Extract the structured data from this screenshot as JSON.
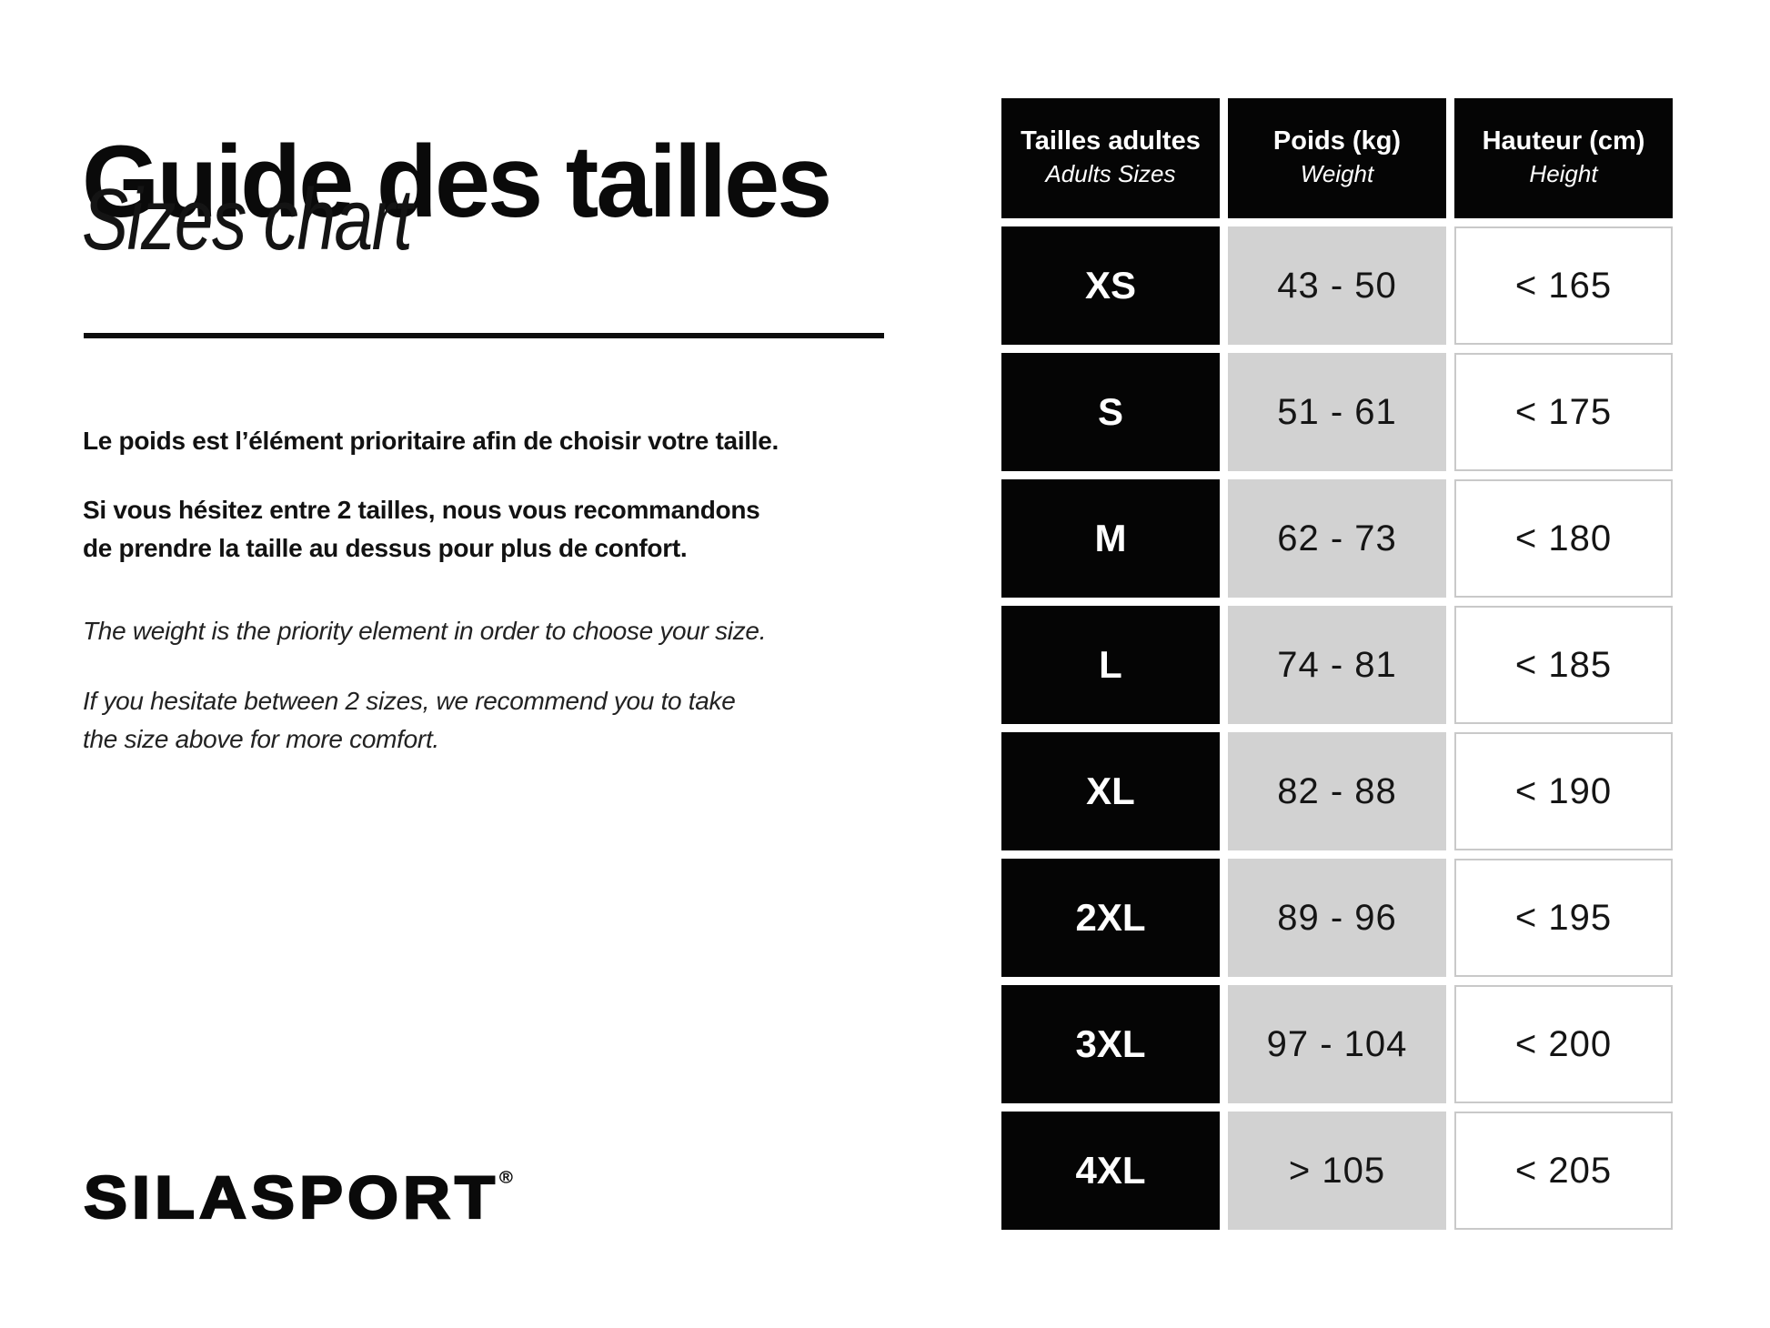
{
  "header": {
    "title_fr": "Guide des tailles",
    "title_en": "Sizes chart"
  },
  "intro": {
    "fr_priority": "Le poids est l’élément prioritaire afin de choisir votre taille.",
    "fr_hesitate_lines": [
      "Si vous hésitez entre 2 tailles, nous vous recommandons",
      "de prendre la taille au dessus pour plus de confort."
    ],
    "en_priority": "The weight is the priority element in order to choose your size.",
    "en_hesitate_lines": [
      "If you hesitate between 2 sizes, we recommend you to take",
      "the size above for more comfort."
    ]
  },
  "logo": {
    "text": "SILASPORT",
    "registered": "®"
  },
  "chart_data": {
    "type": "table",
    "headers": [
      {
        "fr": "Tailles adultes",
        "en": "Adults Sizes"
      },
      {
        "fr": "Poids (kg)",
        "en": "Weight"
      },
      {
        "fr": "Hauteur (cm)",
        "en": "Height"
      }
    ],
    "rows": [
      {
        "size": "XS",
        "weight": "43 - 50",
        "height": "< 165"
      },
      {
        "size": "S",
        "weight": "51 - 61",
        "height": "< 175"
      },
      {
        "size": "M",
        "weight": "62 - 73",
        "height": "< 180"
      },
      {
        "size": "L",
        "weight": "74 - 81",
        "height": "< 185"
      },
      {
        "size": "XL",
        "weight": "82 - 88",
        "height": "< 190"
      },
      {
        "size": "2XL",
        "weight": "89 - 96",
        "height": "< 195"
      },
      {
        "size": "3XL",
        "weight": "97 - 104",
        "height": "< 200"
      },
      {
        "size": "4XL",
        "weight": "> 105",
        "height": "< 205"
      }
    ]
  },
  "colors": {
    "background": "#ffffff",
    "ink": "#0a0a0a",
    "cell_black": "#050505",
    "cell_gray": "#d2d2d2",
    "cell_border": "#c9c9c9"
  }
}
